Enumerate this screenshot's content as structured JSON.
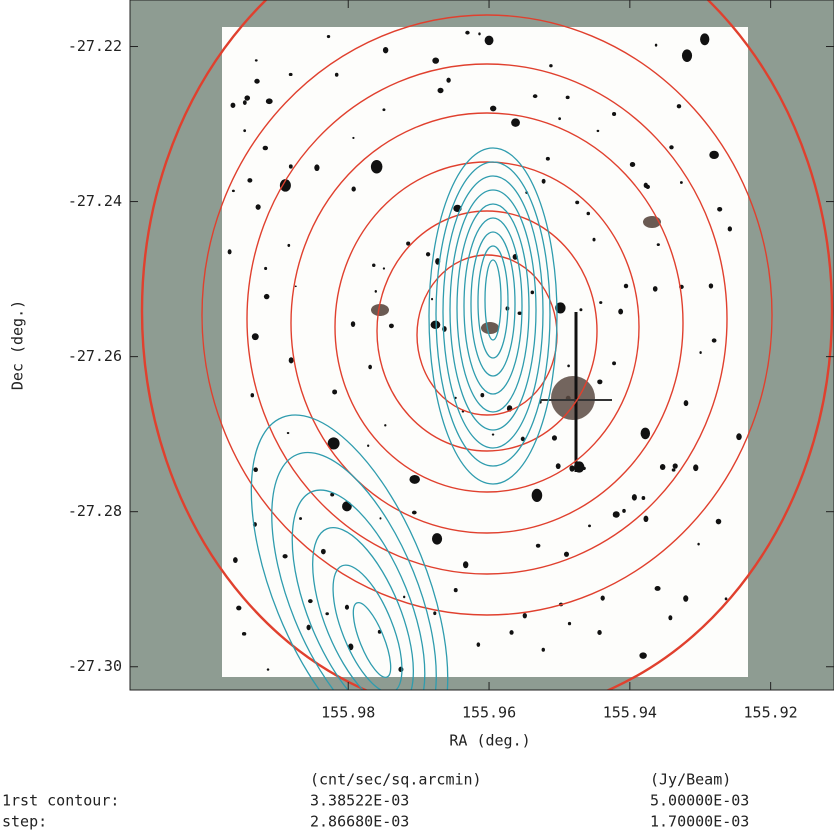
{
  "chart_data": {
    "type": "contour",
    "x_label": "RA (deg.)",
    "y_label": "Dec (deg.)",
    "xlim": [
      156.011,
      155.911
    ],
    "xticks": [
      155.98,
      155.96,
      155.94,
      155.92
    ],
    "ylim": [
      -27.303,
      -27.214
    ],
    "yticks": [
      -27.22,
      -27.24,
      -27.26,
      -27.28,
      {
        "value": -27.3,
        "label": "-27.30"
      }
    ],
    "row_labels": [
      "1rst contour:",
      "step:"
    ],
    "contour_sets": [
      {
        "unit": "(cnt/sec/sq.arcmin)",
        "color": "#e0402e",
        "first": {
          "value": 0.00338522,
          "label": "3.38522E-03"
        },
        "step": {
          "value": 0.0028668,
          "label": "2.86680E-03"
        }
      },
      {
        "unit": "(Jy/Beam)",
        "color": "#2f9cae",
        "first": {
          "value": 0.005,
          "label": "5.00000E-03"
        },
        "step": {
          "value": 0.0017,
          "label": "1.70000E-03"
        }
      }
    ]
  }
}
